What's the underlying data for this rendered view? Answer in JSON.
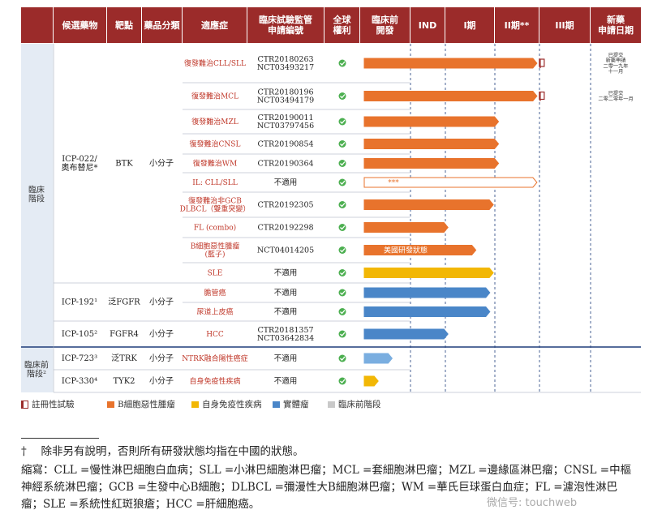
{
  "header": {
    "columns": [
      "候選藥物",
      "靶點",
      "藥品分類",
      "適應症",
      "臨床試驗監管\n申請編號",
      "全球\n權利",
      "臨床前\n開發",
      "IND",
      "I期",
      "II期**",
      "III期",
      "新藥\n申請日期"
    ]
  },
  "sections": [
    {
      "label": "臨床\n階段"
    },
    {
      "label": "臨床前\n階段²"
    }
  ],
  "drugs": [
    {
      "name": "ICP-022/\n奧布替尼*",
      "target": "BTK",
      "category": "小分子"
    },
    {
      "name": "ICP-192¹",
      "target": "泛FGFR",
      "category": "小分子"
    },
    {
      "name": "ICP-105²",
      "target": "FGFR4",
      "category": "小分子"
    },
    {
      "name": "ICP-723³",
      "target": "泛TRK",
      "category": "小分子"
    },
    {
      "name": "ICP-330⁴",
      "target": "TYK2",
      "category": "小分子"
    }
  ],
  "rows": [
    {
      "indication": "復發難治CLL/SLL",
      "trial": "CTR20180263\nNCT03493217",
      "color": "#e8732c",
      "progress": 0.99,
      "registrational": true,
      "nda": "已提交\n新藥申請\n二零一九年\n十一月"
    },
    {
      "indication": "復發難治MCL",
      "trial": "CTR20180196\nNCT03494179",
      "color": "#e8732c",
      "progress": 0.99,
      "registrational": true,
      "nda": "已提交\n二零二零年一月"
    },
    {
      "indication": "復發難治MZL",
      "trial": "CTR20190011\nNCT03797456",
      "color": "#e8732c",
      "progress": 0.77
    },
    {
      "indication": "復發難治CNSL",
      "trial": "CTR20190854",
      "color": "#e8732c",
      "progress": 0.77
    },
    {
      "indication": "復發難治WM",
      "trial": "CTR20190364",
      "color": "#e8732c",
      "progress": 0.77
    },
    {
      "indication": "IL: CLL/SLL",
      "trial": "不適用",
      "color": "#ffffff",
      "outline": "#e8732c",
      "progress": 0.99,
      "bar_text": "***"
    },
    {
      "indication": "復發難治非GCB\nDLBCL（雙重突變）",
      "trial": "CTR20192305",
      "color": "#e8732c",
      "progress": 0.74
    },
    {
      "indication": "FL (combo)",
      "trial": "CTR20192298",
      "color": "#e8732c",
      "progress": 0.48
    },
    {
      "indication": "B細胞惡性腫瘤\n(藍子)",
      "trial": "NCT04014205",
      "color": "#e8732c",
      "progress": 0.64,
      "bar_text": "美國研發狀態"
    },
    {
      "indication": "SLE",
      "trial": "不適用",
      "color": "#f2b705",
      "progress": 0.74
    },
    {
      "indication": "膽管癌",
      "trial": "不適用",
      "color": "#4a86c8",
      "progress": 0.72
    },
    {
      "indication": "尿道上皮癌",
      "trial": "不適用",
      "color": "#4a86c8",
      "progress": 0.72
    },
    {
      "indication": "HCC",
      "trial": "CTR20181357\nNCT03642834",
      "color": "#4a86c8",
      "progress": 0.48
    },
    {
      "indication": "NTRK融合陽性癌症",
      "trial": "不適用",
      "color": "#7aaee0",
      "progress": 0.16
    },
    {
      "indication": "自身免疫性疾病",
      "trial": "不適用",
      "color": "#f2b705",
      "progress": 0.08
    }
  ],
  "legend": [
    {
      "label": "註冊性試驗",
      "color": "#9b2b2a",
      "shape": "flag"
    },
    {
      "label": "B細胞惡性腫瘤",
      "color": "#e8732c"
    },
    {
      "label": "自身免疫性疾病",
      "color": "#f2b705"
    },
    {
      "label": "實體瘤",
      "color": "#4a86c8"
    },
    {
      "label": "臨床前階段",
      "color": "#c9c9c9"
    }
  ],
  "notes": {
    "dagger": "†　 除非另有說明，否則所有研發狀態均指在中國的狀態。",
    "abbrev": "縮寫：CLL =慢性淋巴細胞白血病；SLL =小淋巴細胞淋巴瘤；MCL =套細胞淋巴瘤；MZL =邊緣區淋巴瘤；CNSL =中樞神經系統淋巴瘤；GCB =生發中心B細胞；DLBCL =彌漫性大B細胞淋巴瘤；WM =華氏巨球蛋白血症；FL =濾泡性淋巴瘤；SLE =系統性紅斑狼瘡；HCC =肝細胞癌。"
  },
  "watermark": "微信号: touchweb",
  "colors": {
    "header": "#9b2b2a",
    "check": "#4caf50",
    "divider": "#1f3d7a"
  }
}
